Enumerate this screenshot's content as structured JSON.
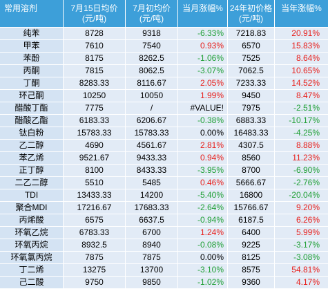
{
  "chart_data": {
    "type": "table",
    "columns": [
      {
        "label": "常用溶剂"
      },
      {
        "label": "7月15日均价",
        "unit": "(元/吨)"
      },
      {
        "label": "7月初均价",
        "unit": "(元/吨)"
      },
      {
        "label": "当月涨幅%"
      },
      {
        "label": "24年初价格",
        "unit": "(元/吨)"
      },
      {
        "label": "当年涨幅%"
      }
    ],
    "rows": [
      [
        "纯苯",
        "8728",
        "9318",
        "-6.33%",
        "7218.83",
        "20.91%"
      ],
      [
        "甲苯",
        "7610",
        "7540",
        "0.93%",
        "6570",
        "15.83%"
      ],
      [
        "苯酚",
        "8175",
        "8262.5",
        "-1.06%",
        "7525",
        "8.64%"
      ],
      [
        "丙酮",
        "7815",
        "8062.5",
        "-3.07%",
        "7062.5",
        "10.65%"
      ],
      [
        "丁酮",
        "8283.33",
        "8116.67",
        "2.05%",
        "7233.33",
        "14.52%"
      ],
      [
        "环己酮",
        "10250",
        "10050",
        "1.99%",
        "9450",
        "8.47%"
      ],
      [
        "醋酸丁酯",
        "7775",
        "/",
        "#VALUE!",
        "7975",
        "-2.51%"
      ],
      [
        "醋酸乙酯",
        "6183.33",
        "6206.67",
        "-0.38%",
        "6883.33",
        "-10.17%"
      ],
      [
        "钛白粉",
        "15783.33",
        "15783.33",
        "0.00%",
        "16483.33",
        "-4.25%"
      ],
      [
        "乙二醇",
        "4690",
        "4561.67",
        "2.81%",
        "4307.5",
        "8.88%"
      ],
      [
        "苯乙烯",
        "9521.67",
        "9433.33",
        "0.94%",
        "8560",
        "11.23%"
      ],
      [
        "正丁醇",
        "8100",
        "8433.33",
        "-3.95%",
        "8700",
        "-6.90%"
      ],
      [
        "二乙二醇",
        "5510",
        "5485",
        "0.46%",
        "5666.67",
        "-2.76%"
      ],
      [
        "TDI",
        "13433.33",
        "14200",
        "-5.40%",
        "16800",
        "-20.04%"
      ],
      [
        "聚合MDI",
        "17216.67",
        "17683.33",
        "-2.64%",
        "15766.67",
        "9.20%"
      ],
      [
        "丙烯酸",
        "6575",
        "6637.5",
        "-0.94%",
        "6187.5",
        "6.26%"
      ],
      [
        "环氧乙烷",
        "6783.33",
        "6700",
        "1.24%",
        "6400",
        "5.99%"
      ],
      [
        "环氧丙烷",
        "8932.5",
        "8940",
        "-0.08%",
        "9225",
        "-3.17%"
      ],
      [
        "环氧氯丙烷",
        "7875",
        "7875",
        "0.00%",
        "8125",
        "-3.08%"
      ],
      [
        "丁二烯",
        "13275",
        "13700",
        "-3.10%",
        "8575",
        "54.81%"
      ],
      [
        "己二酸",
        "9750",
        "9850",
        "-1.02%",
        "9360",
        "4.17%"
      ]
    ]
  },
  "colors": {
    "header_bg": "#3d9fd9",
    "positive_text": "#e8211d",
    "negative_text": "#21a037",
    "neutral_text": "#000000"
  }
}
